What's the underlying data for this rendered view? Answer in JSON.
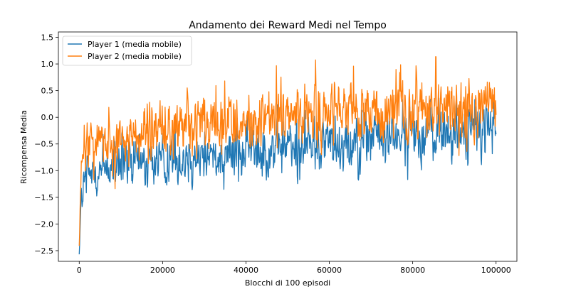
{
  "chart_data": {
    "type": "line",
    "title": "Andamento dei Reward Medi nel Tempo",
    "xlabel": "Blocchi di 100 episodi",
    "ylabel": "Ricompensa Media",
    "xlim": [
      -5000,
      105000
    ],
    "ylim": [
      -2.7,
      1.6
    ],
    "xticks": [
      0,
      20000,
      40000,
      60000,
      80000,
      100000
    ],
    "xtick_labels": [
      "0",
      "20000",
      "40000",
      "60000",
      "80000",
      "100000"
    ],
    "yticks": [
      -2.5,
      -2.0,
      -1.5,
      -1.0,
      -0.5,
      0.0,
      0.5,
      1.0,
      1.5
    ],
    "ytick_labels": [
      "−2.5",
      "−2.0",
      "−1.5",
      "−1.0",
      "−0.5",
      "0.0",
      "0.5",
      "1.0",
      "1.5"
    ],
    "grid": false,
    "legend_position": "top-left",
    "series": [
      {
        "name": "Player 1 (media mobile)",
        "color": "#1f77b4",
        "x": [
          0,
          200,
          500,
          1000,
          2000,
          3000,
          5000,
          7500,
          10000,
          15000,
          20000,
          25000,
          30000,
          35000,
          40000,
          45000,
          50000,
          55000,
          60000,
          65000,
          70000,
          75000,
          80000,
          85000,
          90000,
          95000,
          100000
        ],
        "center": [
          -2.5,
          -2.1,
          -1.6,
          -1.3,
          -1.15,
          -1.05,
          -0.95,
          -0.92,
          -0.9,
          -0.85,
          -0.8,
          -0.75,
          -0.7,
          -0.65,
          -0.62,
          -0.58,
          -0.55,
          -0.5,
          -0.45,
          -0.42,
          -0.38,
          -0.35,
          -0.3,
          -0.27,
          -0.24,
          -0.21,
          -0.18
        ],
        "spread": [
          0.1,
          0.4,
          0.5,
          0.6,
          0.65,
          0.65,
          0.65,
          0.65,
          0.65,
          0.65,
          0.65,
          0.65,
          0.65,
          0.65,
          0.65,
          0.65,
          0.65,
          0.65,
          0.65,
          0.65,
          0.65,
          0.65,
          0.65,
          0.65,
          0.65,
          0.65,
          0.65
        ]
      },
      {
        "name": "Player 2 (media mobile)",
        "color": "#ff7f0e",
        "x": [
          0,
          200,
          500,
          1000,
          2000,
          3000,
          5000,
          7500,
          10000,
          15000,
          20000,
          25000,
          30000,
          35000,
          40000,
          45000,
          50000,
          55000,
          60000,
          65000,
          70000,
          75000,
          80000,
          85000,
          90000,
          95000,
          100000
        ],
        "center": [
          -2.4,
          -1.8,
          -1.1,
          -0.7,
          -0.5,
          -0.45,
          -0.4,
          -0.37,
          -0.35,
          -0.3,
          -0.25,
          -0.2,
          -0.17,
          -0.13,
          -0.1,
          -0.07,
          -0.03,
          0.0,
          0.02,
          0.05,
          0.08,
          0.1,
          0.12,
          0.15,
          0.17,
          0.19,
          0.2
        ],
        "spread": [
          0.1,
          0.4,
          0.55,
          0.6,
          0.6,
          0.62,
          0.62,
          0.62,
          0.62,
          0.62,
          0.62,
          0.62,
          0.62,
          0.62,
          0.62,
          0.62,
          0.62,
          0.62,
          0.62,
          0.62,
          0.62,
          0.62,
          0.62,
          0.62,
          0.62,
          0.62,
          0.62
        ]
      }
    ]
  }
}
